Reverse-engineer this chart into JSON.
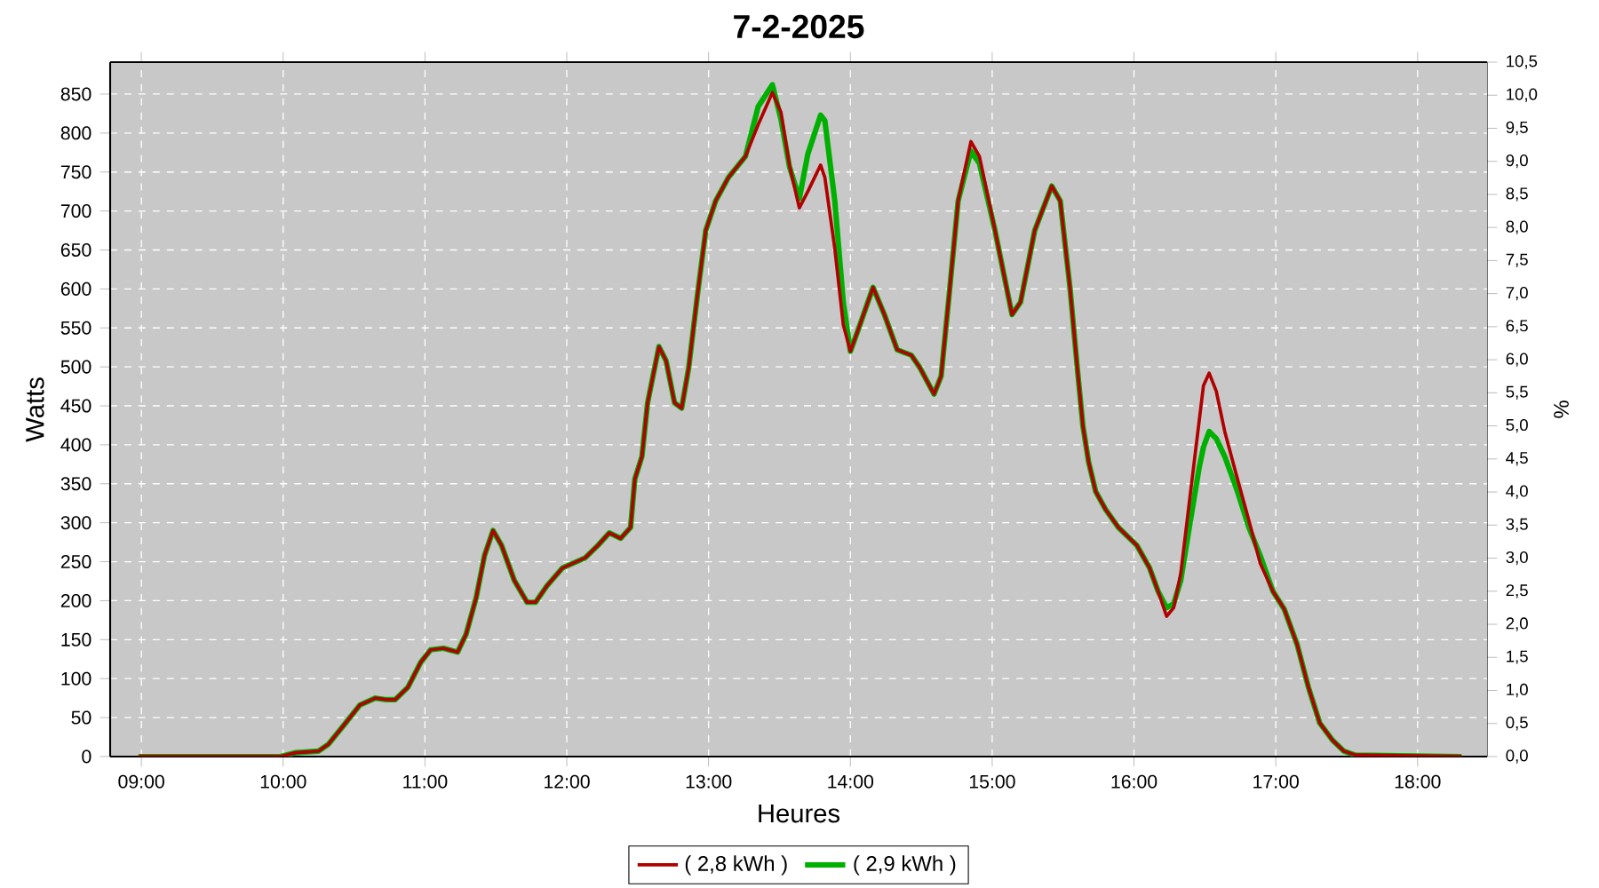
{
  "chart_data": {
    "type": "line",
    "title": "7-2-2025",
    "xlabel": "Heures",
    "ylabel": "Watts",
    "y2label": "%",
    "x": [
      8.98,
      9.98,
      10.09,
      10.25,
      10.32,
      10.44,
      10.54,
      10.65,
      10.73,
      10.79,
      10.88,
      10.97,
      11.04,
      11.13,
      11.23,
      11.29,
      11.36,
      11.42,
      11.48,
      11.54,
      11.63,
      11.72,
      11.78,
      11.86,
      11.97,
      12.13,
      12.22,
      12.3,
      12.38,
      12.45,
      12.48,
      12.53,
      12.57,
      12.65,
      12.7,
      12.76,
      12.81,
      12.86,
      12.92,
      12.98,
      13.05,
      13.14,
      13.26,
      13.35,
      13.45,
      13.51,
      13.57,
      13.64,
      13.7,
      13.79,
      13.82,
      13.89,
      13.95,
      14.0,
      14.05,
      14.16,
      14.24,
      14.33,
      14.43,
      14.49,
      14.59,
      14.64,
      14.7,
      14.76,
      14.85,
      14.91,
      15.02,
      15.14,
      15.2,
      15.3,
      15.42,
      15.48,
      15.55,
      15.6,
      15.64,
      15.68,
      15.73,
      15.8,
      15.89,
      16.02,
      16.11,
      16.17,
      16.23,
      16.28,
      16.33,
      16.39,
      16.46,
      16.49,
      16.53,
      16.58,
      16.64,
      16.73,
      16.81,
      16.89,
      16.98,
      17.06,
      17.15,
      17.23,
      17.31,
      17.4,
      17.48,
      17.56,
      18.31
    ],
    "series": [
      {
        "name": "( 2,8 kWh )",
        "color": "#b00000",
        "values": [
          0,
          0,
          5,
          7,
          16,
          43,
          66,
          75,
          73,
          73,
          89,
          121,
          137,
          139,
          134,
          157,
          203,
          258,
          290,
          271,
          226,
          198,
          198,
          219,
          242,
          255,
          271,
          287,
          280,
          294,
          356,
          385,
          454,
          526,
          508,
          454,
          447,
          499,
          590,
          675,
          713,
          743,
          770,
          811,
          852,
          827,
          759,
          704,
          725,
          759,
          743,
          652,
          554,
          520,
          545,
          602,
          567,
          522,
          515,
          499,
          465,
          488,
          599,
          713,
          789,
          770,
          675,
          567,
          583,
          675,
          732,
          713,
          599,
          499,
          424,
          378,
          340,
          317,
          294,
          271,
          242,
          212,
          180,
          191,
          235,
          326,
          431,
          476,
          492,
          469,
          417,
          356,
          303,
          248,
          212,
          189,
          144,
          89,
          43,
          21,
          7,
          2,
          0
        ]
      },
      {
        "name": "( 2,9 kWh )",
        "color": "#00b000",
        "values": [
          0,
          0,
          5,
          7,
          16,
          43,
          66,
          75,
          73,
          73,
          89,
          121,
          137,
          139,
          134,
          157,
          203,
          258,
          290,
          271,
          226,
          198,
          198,
          219,
          242,
          255,
          271,
          287,
          280,
          294,
          356,
          385,
          454,
          526,
          508,
          454,
          447,
          499,
          590,
          675,
          713,
          743,
          770,
          834,
          862,
          818,
          757,
          716,
          773,
          823,
          816,
          713,
          583,
          520,
          545,
          602,
          567,
          522,
          515,
          499,
          465,
          488,
          599,
          713,
          777,
          761,
          675,
          567,
          583,
          675,
          732,
          713,
          599,
          499,
          424,
          378,
          340,
          317,
          294,
          271,
          242,
          212,
          191,
          196,
          226,
          294,
          371,
          397,
          417,
          408,
          385,
          340,
          294,
          258,
          212,
          189,
          144,
          89,
          43,
          21,
          7,
          2,
          0
        ]
      }
    ],
    "xlim": [
      8.78,
      18.49
    ],
    "ylim": [
      0,
      891
    ],
    "y2lim": [
      0,
      10.5
    ],
    "xticks": [
      {
        "value": 9,
        "label": "09:00"
      },
      {
        "value": 10,
        "label": "10:00"
      },
      {
        "value": 11,
        "label": "11:00"
      },
      {
        "value": 12,
        "label": "12:00"
      },
      {
        "value": 13,
        "label": "13:00"
      },
      {
        "value": 14,
        "label": "14:00"
      },
      {
        "value": 15,
        "label": "15:00"
      },
      {
        "value": 16,
        "label": "16:00"
      },
      {
        "value": 17,
        "label": "17:00"
      },
      {
        "value": 18,
        "label": "18:00"
      }
    ],
    "yticks": [
      0,
      50,
      100,
      150,
      200,
      250,
      300,
      350,
      400,
      450,
      500,
      550,
      600,
      650,
      700,
      750,
      800,
      850
    ],
    "y2ticks": [
      {
        "value": 0,
        "label": "0,0"
      },
      {
        "value": 0.5,
        "label": "0,5"
      },
      {
        "value": 1,
        "label": "1,0"
      },
      {
        "value": 1.5,
        "label": "1,5"
      },
      {
        "value": 2,
        "label": "2,0"
      },
      {
        "value": 2.5,
        "label": "2,5"
      },
      {
        "value": 3,
        "label": "3,0"
      },
      {
        "value": 3.5,
        "label": "3,5"
      },
      {
        "value": 4,
        "label": "4,0"
      },
      {
        "value": 4.5,
        "label": "4,5"
      },
      {
        "value": 5,
        "label": "5,0"
      },
      {
        "value": 5.5,
        "label": "5,5"
      },
      {
        "value": 6,
        "label": "6,0"
      },
      {
        "value": 6.5,
        "label": "6,5"
      },
      {
        "value": 7,
        "label": "7,0"
      },
      {
        "value": 7.5,
        "label": "7,5"
      },
      {
        "value": 8,
        "label": "8,0"
      },
      {
        "value": 8.5,
        "label": "8,5"
      },
      {
        "value": 9,
        "label": "9,0"
      },
      {
        "value": 9.5,
        "label": "9,5"
      },
      {
        "value": 10,
        "label": "10,0"
      },
      {
        "value": 10.5,
        "label": "10,5"
      }
    ],
    "grid": true,
    "legend": "bottom"
  }
}
